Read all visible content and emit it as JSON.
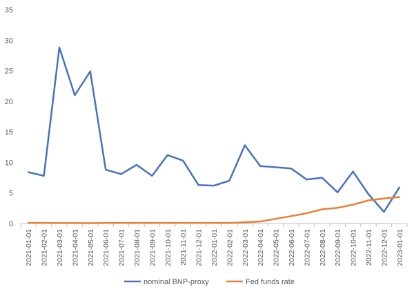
{
  "chart_data": {
    "type": "line",
    "title": "",
    "xlabel": "",
    "ylabel": "",
    "categories": [
      "2021-01-01",
      "2021-02-01",
      "2021-03-01",
      "2021-04-01",
      "2021-05-01",
      "2021-06-01",
      "2021-07-01",
      "2021-08-01",
      "2021-09-01",
      "2021-10-01",
      "2021-11-01",
      "2021-12-01",
      "2022-01-01",
      "2022-02-01",
      "2022-03-01",
      "2022-04-01",
      "2022-05-01",
      "2022-06-01",
      "2022-07-01",
      "2022-08-01",
      "2022-09-01",
      "2022-10-01",
      "2022-11-01",
      "2022-12-01",
      "2023-01-01"
    ],
    "series": [
      {
        "name": "nominal BNP-proxy",
        "color": "#4472C4",
        "values": [
          8.4,
          7.8,
          28.8,
          21.0,
          24.9,
          8.8,
          8.1,
          9.6,
          7.8,
          11.2,
          10.3,
          6.3,
          6.2,
          7.0,
          12.8,
          9.4,
          9.2,
          9.0,
          7.2,
          7.5,
          5.1,
          8.5,
          4.8,
          1.9,
          5.9
        ]
      },
      {
        "name": "Fed funds rate",
        "color": "#ED7D31",
        "values": [
          0.08,
          0.08,
          0.07,
          0.07,
          0.06,
          0.08,
          0.1,
          0.09,
          0.08,
          0.08,
          0.08,
          0.08,
          0.08,
          0.08,
          0.2,
          0.33,
          0.77,
          1.21,
          1.68,
          2.33,
          2.56,
          3.08,
          3.78,
          4.1,
          4.33
        ]
      }
    ],
    "yticks": [
      "0",
      "5",
      "10",
      "15",
      "20",
      "25",
      "30",
      "35"
    ],
    "ylim": [
      0,
      35
    ],
    "grid": false,
    "legend_position": "bottom"
  }
}
